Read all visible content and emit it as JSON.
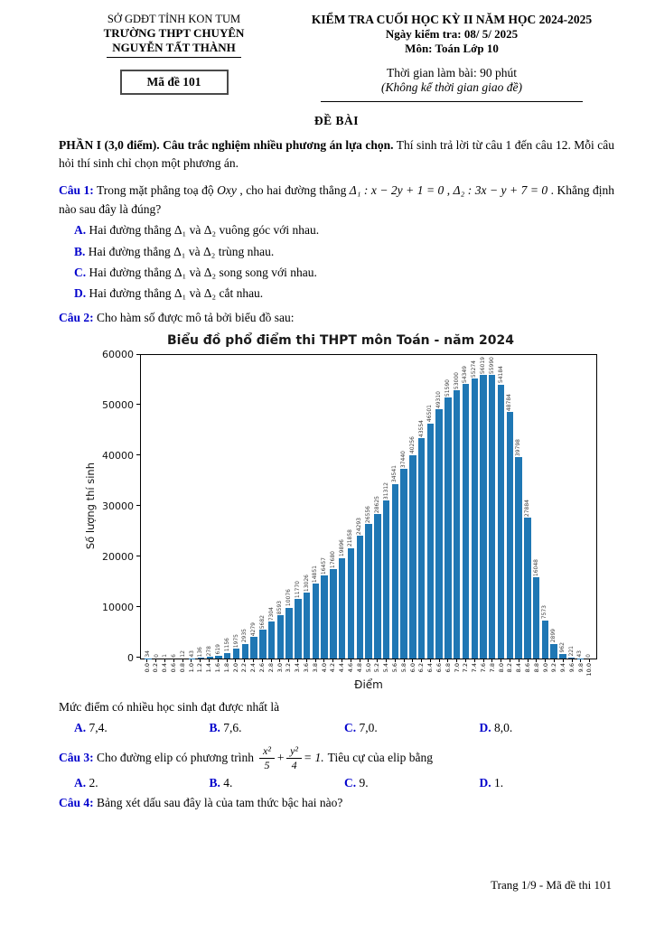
{
  "header": {
    "left_line1": "SỞ GDĐT TỈNH KON TUM",
    "left_line2": "TRƯỜNG THPT CHUYÊN",
    "left_line3": "NGUYỄN TẤT THÀNH",
    "exam_code": "Mã đề 101",
    "right_title": "KIỂM TRA CUỐI HỌC KỲ II NĂM HỌC 2024-2025",
    "right_date": "Ngày kiểm tra: 08/ 5/ 2025",
    "right_subject": "Môn: Toán Lớp 10",
    "right_time": "Thời gian làm bài: 90 phút",
    "right_note": "(Không kể thời gian giao đề)"
  },
  "body": {
    "de_bai": "ĐỀ BÀI",
    "part1_bold": "PHẦN I (3,0 điểm). Câu trắc nghiệm nhiều phương án lựa chọn.",
    "part1_rest": " Thí sinh trả lời từ câu 1 đến câu 12. Mỗi câu hỏi thí sinh chỉ chọn một phương án.",
    "q1": {
      "label": "Câu 1:",
      "pre": " Trong mặt phẳng toạ độ ",
      "oxy": "Oxy",
      "mid1": " , cho hai đường thẳng ",
      "d1": "Δ₁ : x − 2y + 1 = 0",
      "sep": " , ",
      "d2": "Δ₂ : 3x − y + 7 = 0",
      "post": " . Khẳng định nào sau đây là đúng?",
      "options": [
        {
          "letter": "A.",
          "text": " Hai đường thẳng Δ₁ và Δ₂ vuông góc với nhau."
        },
        {
          "letter": "B.",
          "text": " Hai đường thẳng Δ₁ và Δ₂ trùng nhau."
        },
        {
          "letter": "C.",
          "text": " Hai đường thẳng Δ₁ và Δ₂ song song với nhau."
        },
        {
          "letter": "D.",
          "text": " Hai đường thẳng Δ₁ và Δ₂ cắt nhau."
        }
      ]
    },
    "q2": {
      "label": "Câu 2:",
      "text": " Cho hàm số được mô tả bởi biểu đồ sau:",
      "question": "Mức điểm có nhiều học sinh đạt được nhất là",
      "options": [
        {
          "letter": "A.",
          "text": " 7,4."
        },
        {
          "letter": "B.",
          "text": " 7,6."
        },
        {
          "letter": "C.",
          "text": " 7,0."
        },
        {
          "letter": "D.",
          "text": " 8,0."
        }
      ]
    },
    "q3": {
      "label": "Câu 3:",
      "pre": " Cho đường elip có phương trình",
      "frac1_num": "x²",
      "frac1_den": "5",
      "plus": "+",
      "frac2_num": "y²",
      "frac2_den": "4",
      "eq": "= 1.",
      "post": "Tiêu cự của elip bằng",
      "options": [
        {
          "letter": "A.",
          "text": " 2."
        },
        {
          "letter": "B.",
          "text": " 4."
        },
        {
          "letter": "C.",
          "text": " 9."
        },
        {
          "letter": "D.",
          "text": " 1."
        }
      ]
    },
    "q4": {
      "label": "Câu 4:",
      "text": " Bảng xét dấu sau đây là của tam thức bậc hai nào?"
    }
  },
  "chart_data": {
    "type": "bar",
    "title": "Biểu đồ phổ điểm thi THPT môn Toán - năm 2024",
    "xlabel": "Điểm",
    "ylabel": "Số lượng thí sinh",
    "ylim": [
      0,
      60000
    ],
    "yticks": [
      0,
      10000,
      20000,
      30000,
      40000,
      50000,
      60000
    ],
    "bar_color": "#1f77b4",
    "grid": false,
    "categories": [
      "0.0",
      "0.2",
      "0.4",
      "0.6",
      "0.8",
      "1.0",
      "1.2",
      "1.4",
      "1.6",
      "1.8",
      "2.0",
      "2.2",
      "2.4",
      "2.6",
      "2.8",
      "3.0",
      "3.2",
      "3.4",
      "3.6",
      "3.8",
      "4.0",
      "4.2",
      "4.4",
      "4.6",
      "4.8",
      "5.0",
      "5.2",
      "5.4",
      "5.6",
      "5.8",
      "6.0",
      "6.2",
      "6.4",
      "6.6",
      "6.8",
      "7.0",
      "7.2",
      "7.4",
      "7.6",
      "7.8",
      "8.0",
      "8.2",
      "8.4",
      "8.6",
      "8.8",
      "9.0",
      "9.2",
      "9.4",
      "9.6",
      "9.8",
      "10.0"
    ],
    "values": [
      34,
      0,
      1,
      6,
      12,
      43,
      136,
      278,
      619,
      1156,
      1975,
      2935,
      4279,
      5682,
      7304,
      8593,
      10076,
      11770,
      13026,
      14851,
      16457,
      17680,
      19896,
      21858,
      24293,
      26556,
      28625,
      31312,
      34541,
      37440,
      40256,
      43554,
      46501,
      49310,
      51590,
      53000,
      54349,
      55274,
      56019,
      55990,
      54184,
      48784,
      39798,
      27884,
      16048,
      7573,
      2899,
      962,
      221,
      43,
      0
    ]
  },
  "footer": "Trang 1/9 - Mã đề thi 101"
}
